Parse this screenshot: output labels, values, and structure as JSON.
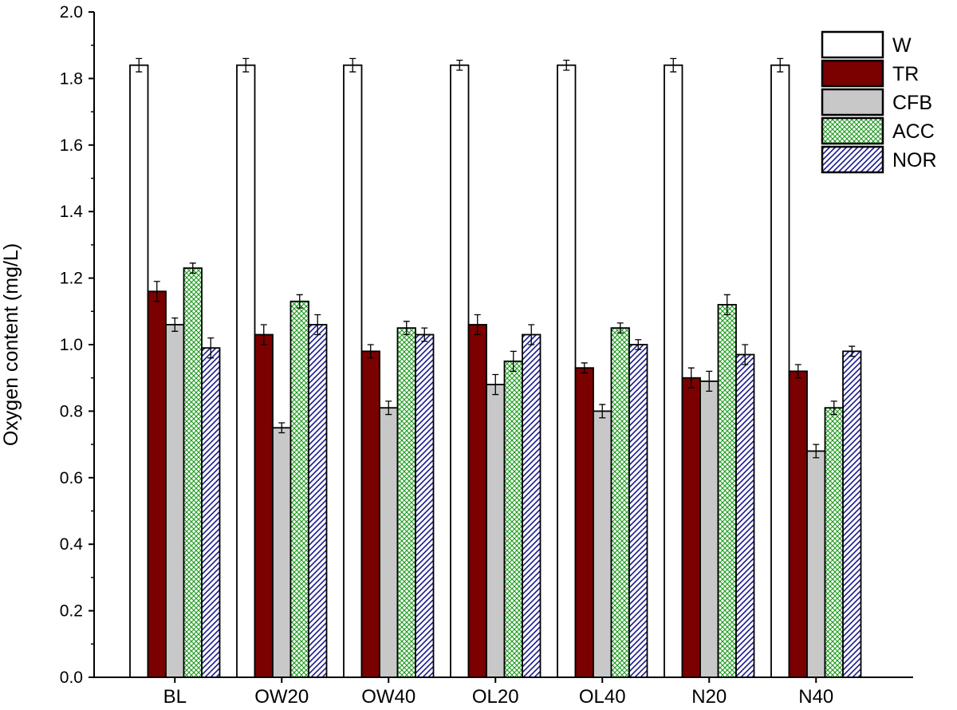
{
  "chart_data": {
    "type": "bar",
    "title": "",
    "xlabel": "",
    "ylabel": "Oxygen content (mg/L)",
    "ylim": [
      0,
      2.0
    ],
    "yticks": [
      "0.0",
      "0.2",
      "0.4",
      "0.6",
      "0.8",
      "1.0",
      "1.2",
      "1.4",
      "1.6",
      "1.8",
      "2.0"
    ],
    "categories": [
      "BL",
      "OW20",
      "OW40",
      "OL20",
      "OL40",
      "N20",
      "N40"
    ],
    "grid": false,
    "legend_position": "top-right",
    "series": [
      {
        "name": "W",
        "fill": "#ffffff",
        "pattern": "none",
        "values": [
          1.84,
          1.84,
          1.84,
          1.84,
          1.84,
          1.84,
          1.84
        ],
        "errors": [
          0.02,
          0.02,
          0.02,
          0.015,
          0.015,
          0.02,
          0.02
        ]
      },
      {
        "name": "TR",
        "fill": "#7b0000",
        "pattern": "none",
        "values": [
          1.16,
          1.03,
          0.98,
          1.06,
          0.93,
          0.9,
          0.92
        ],
        "errors": [
          0.03,
          0.03,
          0.02,
          0.03,
          0.015,
          0.03,
          0.02
        ]
      },
      {
        "name": "CFB",
        "fill": "#c8c8c8",
        "pattern": "none",
        "values": [
          1.06,
          0.75,
          0.81,
          0.88,
          0.8,
          0.89,
          0.68
        ],
        "errors": [
          0.02,
          0.015,
          0.02,
          0.03,
          0.02,
          0.03,
          0.02
        ]
      },
      {
        "name": "ACC",
        "fill": "#1a9a1a",
        "pattern": "cross",
        "values": [
          1.23,
          1.13,
          1.05,
          0.95,
          1.05,
          1.12,
          0.81
        ],
        "errors": [
          0.015,
          0.02,
          0.02,
          0.03,
          0.015,
          0.03,
          0.02
        ]
      },
      {
        "name": "NOR",
        "fill": "#1a1a8c",
        "pattern": "diag",
        "values": [
          0.99,
          1.06,
          1.03,
          1.03,
          1.0,
          0.97,
          0.98
        ],
        "errors": [
          0.03,
          0.03,
          0.02,
          0.03,
          0.015,
          0.03,
          0.015
        ]
      }
    ]
  }
}
